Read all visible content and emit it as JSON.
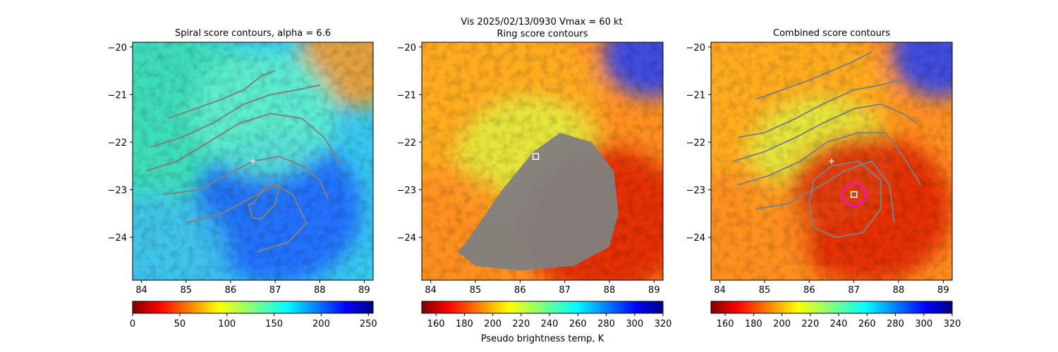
{
  "figure": {
    "suptitle_line1": "Vis  2025/02/13/0930    Vmax = 60 kt",
    "colorbar_label": "Pseudo brightness temp, K"
  },
  "chart_data": [
    {
      "type": "heatmap",
      "title": "Spiral score contours, alpha =  6.6",
      "xlim": [
        83.8,
        89.2
      ],
      "ylim": [
        -24.9,
        -19.9
      ],
      "xticks": [
        "84",
        "85",
        "86",
        "87",
        "88",
        "89"
      ],
      "yticks": [
        "−20",
        "−21",
        "−22",
        "−23",
        "−24"
      ],
      "colormap": "jet_r",
      "colorbar": {
        "range": [
          0,
          255
        ],
        "ticks": [
          "0",
          "50",
          "100",
          "150",
          "200",
          "250"
        ]
      },
      "contour_color": "#808080",
      "contours": [
        {
          "x": [
            84.6,
            85.2,
            85.8,
            86.3,
            86.7,
            87.0
          ],
          "y": [
            -21.5,
            -21.3,
            -21.1,
            -20.9,
            -20.6,
            -20.5
          ]
        },
        {
          "x": [
            84.2,
            84.9,
            85.6,
            86.3,
            86.9,
            87.5,
            88.0
          ],
          "y": [
            -22.1,
            -21.9,
            -21.6,
            -21.2,
            -21.0,
            -20.9,
            -20.8
          ]
        },
        {
          "x": [
            84.1,
            84.8,
            85.5,
            86.2,
            86.9,
            87.6,
            88.1,
            88.5
          ],
          "y": [
            -22.6,
            -22.4,
            -22.0,
            -21.6,
            -21.4,
            -21.5,
            -21.9,
            -22.5
          ]
        },
        {
          "x": [
            84.5,
            85.3,
            85.9,
            86.5,
            87.1,
            87.6,
            88.0,
            88.2
          ],
          "y": [
            -23.1,
            -23.0,
            -22.7,
            -22.4,
            -22.3,
            -22.5,
            -22.8,
            -23.2
          ]
        },
        {
          "x": [
            85.0,
            85.8,
            86.4,
            87.0,
            87.4,
            87.7,
            87.3,
            86.6
          ],
          "y": [
            -23.7,
            -23.5,
            -23.2,
            -22.9,
            -23.1,
            -23.7,
            -24.1,
            -24.3
          ]
        },
        {
          "x": [
            86.5,
            86.8,
            87.1,
            87.0,
            86.7,
            86.5,
            86.4,
            86.5
          ],
          "y": [
            -23.3,
            -22.9,
            -22.9,
            -23.3,
            -23.6,
            -23.6,
            -23.3,
            -23.3
          ]
        }
      ],
      "markers": [
        {
          "kind": "plus",
          "x": 86.5,
          "y": -22.4,
          "color": "#ffffff"
        }
      ]
    },
    {
      "type": "heatmap",
      "title": "Ring score contours",
      "xlim": [
        83.8,
        89.2
      ],
      "ylim": [
        -24.9,
        -19.9
      ],
      "xticks": [
        "84",
        "85",
        "86",
        "87",
        "88",
        "89"
      ],
      "yticks": [
        "−20",
        "−21",
        "−22",
        "−23",
        "−24"
      ],
      "colormap": "jet_r",
      "colorbar": {
        "range": [
          150,
          320
        ],
        "ticks": [
          "160",
          "180",
          "200",
          "220",
          "240",
          "260",
          "280",
          "300",
          "320"
        ]
      },
      "contour_color": "#808080",
      "ring_region": {
        "x": [
          84.8,
          85.6,
          86.3,
          86.9,
          87.6,
          88.1,
          88.2,
          88.0,
          87.2,
          86.0,
          85.0,
          84.6,
          84.8
        ],
        "y": [
          -24.1,
          -23.0,
          -22.2,
          -21.8,
          -22.0,
          -22.6,
          -23.5,
          -24.2,
          -24.6,
          -24.7,
          -24.6,
          -24.3,
          -24.1
        ]
      },
      "markers": [
        {
          "kind": "square",
          "x": 86.35,
          "y": -22.3,
          "color": "#ffffff"
        }
      ]
    },
    {
      "type": "heatmap",
      "title": "Combined score contours",
      "xlim": [
        83.8,
        89.2
      ],
      "ylim": [
        -24.9,
        -19.9
      ],
      "xticks": [
        "84",
        "85",
        "86",
        "87",
        "88",
        "89"
      ],
      "yticks": [
        "−20",
        "−21",
        "−22",
        "−23",
        "−24"
      ],
      "colormap": "jet_r",
      "colorbar": {
        "range": [
          150,
          320
        ],
        "ticks": [
          "160",
          "180",
          "200",
          "220",
          "240",
          "260",
          "280",
          "300",
          "320"
        ]
      },
      "contour_color": "#808080",
      "contours": [
        {
          "x": [
            84.8,
            85.4,
            86.0,
            86.5,
            87.0,
            87.4
          ],
          "y": [
            -21.1,
            -20.9,
            -20.7,
            -20.5,
            -20.3,
            -20.1
          ]
        },
        {
          "x": [
            84.4,
            85.0,
            85.7,
            86.3,
            87.0,
            87.6,
            88.0
          ],
          "y": [
            -21.9,
            -21.8,
            -21.5,
            -21.2,
            -20.9,
            -20.8,
            -20.7
          ]
        },
        {
          "x": [
            84.3,
            85.0,
            85.7,
            86.3,
            87.0,
            87.6,
            88.1,
            88.4
          ],
          "y": [
            -22.4,
            -22.2,
            -21.9,
            -21.6,
            -21.3,
            -21.2,
            -21.4,
            -21.6
          ]
        },
        {
          "x": [
            84.4,
            85.1,
            85.8,
            86.4,
            87.1,
            87.7,
            88.1,
            88.5
          ],
          "y": [
            -22.9,
            -22.7,
            -22.4,
            -22.0,
            -21.8,
            -21.8,
            -22.3,
            -22.9
          ]
        },
        {
          "x": [
            84.8,
            85.5,
            86.1,
            86.8,
            87.4,
            87.8,
            87.9
          ],
          "y": [
            -23.4,
            -23.3,
            -23.0,
            -22.6,
            -22.4,
            -22.9,
            -23.7
          ]
        },
        {
          "x": [
            86.5,
            87.1,
            87.6,
            87.6,
            87.2,
            86.6,
            86.1,
            86.0,
            86.1,
            86.5
          ],
          "y": [
            -22.5,
            -22.4,
            -22.8,
            -23.4,
            -23.9,
            -24.0,
            -23.8,
            -23.3,
            -22.8,
            -22.5
          ]
        }
      ],
      "markers": [
        {
          "kind": "plus",
          "x": 86.5,
          "y": -22.4,
          "color": "#ffffff"
        },
        {
          "kind": "square",
          "x": 87.0,
          "y": -23.1,
          "color": "#ffffff"
        },
        {
          "kind": "circle",
          "x": 87.0,
          "y": -23.1,
          "color": "#ff00ff"
        }
      ]
    }
  ]
}
